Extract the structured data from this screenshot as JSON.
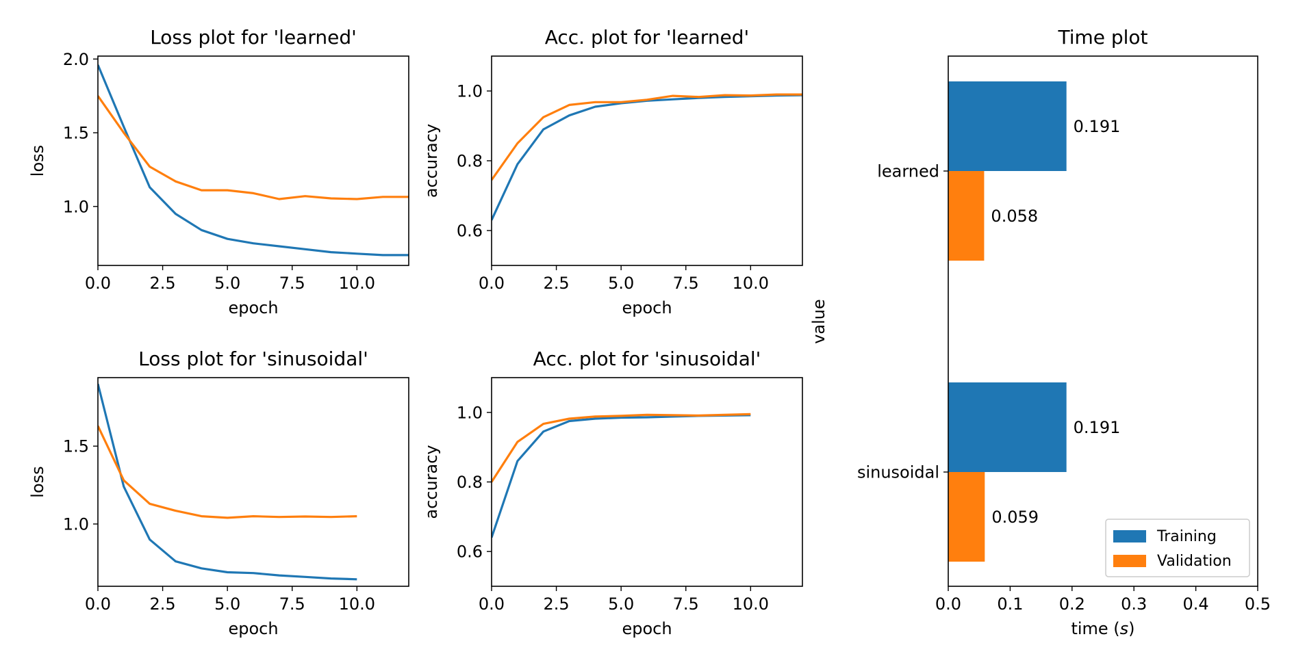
{
  "colors": {
    "training": "#1f77b4",
    "validation": "#ff7f0e"
  },
  "chart_data": [
    {
      "type": "line",
      "title": "Loss plot for 'learned'",
      "xlabel": "epoch",
      "ylabel": "loss",
      "xlim": [
        0,
        12
      ],
      "ylim": [
        0.6,
        2.02
      ],
      "xticks": [
        0,
        2.5,
        5,
        7.5,
        10
      ],
      "xtick_labels": [
        "0.0",
        "2.5",
        "5.0",
        "7.5",
        "10.0"
      ],
      "yticks": [
        1.0,
        1.5,
        2.0
      ],
      "ytick_labels": [
        "1.0",
        "1.5",
        "2.0"
      ],
      "series": [
        {
          "color": "#1f77b4",
          "x": [
            0,
            1,
            2,
            3,
            4,
            5,
            6,
            7,
            8,
            9,
            10,
            11,
            12
          ],
          "y": [
            1.96,
            1.54,
            1.13,
            0.95,
            0.84,
            0.78,
            0.75,
            0.73,
            0.71,
            0.69,
            0.68,
            0.67,
            0.67
          ]
        },
        {
          "color": "#ff7f0e",
          "x": [
            0,
            1,
            2,
            3,
            4,
            5,
            6,
            7,
            8,
            9,
            10,
            11,
            12
          ],
          "y": [
            1.75,
            1.5,
            1.27,
            1.17,
            1.11,
            1.11,
            1.09,
            1.05,
            1.07,
            1.055,
            1.05,
            1.065,
            1.065
          ]
        }
      ]
    },
    {
      "type": "line",
      "title": "Acc. plot for 'learned'",
      "xlabel": "epoch",
      "ylabel": "accuracy",
      "xlim": [
        0,
        12
      ],
      "ylim": [
        0.5,
        1.1
      ],
      "xticks": [
        0,
        2.5,
        5,
        7.5,
        10
      ],
      "xtick_labels": [
        "0.0",
        "2.5",
        "5.0",
        "7.5",
        "10.0"
      ],
      "yticks": [
        0.6,
        0.8,
        1.0
      ],
      "ytick_labels": [
        "0.6",
        "0.8",
        "1.0"
      ],
      "series": [
        {
          "color": "#1f77b4",
          "x": [
            0,
            1,
            2,
            3,
            4,
            5,
            6,
            7,
            8,
            9,
            10,
            11,
            12
          ],
          "y": [
            0.63,
            0.79,
            0.89,
            0.93,
            0.955,
            0.965,
            0.972,
            0.976,
            0.98,
            0.983,
            0.985,
            0.987,
            0.988
          ]
        },
        {
          "color": "#ff7f0e",
          "x": [
            0,
            1,
            2,
            3,
            4,
            5,
            6,
            7,
            8,
            9,
            10,
            11,
            12
          ],
          "y": [
            0.745,
            0.85,
            0.925,
            0.96,
            0.968,
            0.968,
            0.975,
            0.986,
            0.983,
            0.988,
            0.987,
            0.99,
            0.99
          ]
        }
      ]
    },
    {
      "type": "line",
      "title": "Loss plot for 'sinusoidal'",
      "xlabel": "epoch",
      "ylabel": "loss",
      "xlim": [
        0,
        12
      ],
      "ylim": [
        0.6,
        1.94
      ],
      "xticks": [
        0,
        2.5,
        5,
        7.5,
        10
      ],
      "xtick_labels": [
        "0.0",
        "2.5",
        "5.0",
        "7.5",
        "10.0"
      ],
      "yticks": [
        1.0,
        1.5
      ],
      "ytick_labels": [
        "1.0",
        "1.5"
      ],
      "series": [
        {
          "color": "#1f77b4",
          "x": [
            0,
            1,
            2,
            3,
            4,
            5,
            6,
            7,
            8,
            9,
            10
          ],
          "y": [
            1.9,
            1.24,
            0.9,
            0.76,
            0.715,
            0.69,
            0.685,
            0.67,
            0.66,
            0.65,
            0.645
          ]
        },
        {
          "color": "#ff7f0e",
          "x": [
            0,
            1,
            2,
            3,
            4,
            5,
            6,
            7,
            8,
            9,
            10
          ],
          "y": [
            1.63,
            1.28,
            1.13,
            1.085,
            1.05,
            1.04,
            1.05,
            1.045,
            1.048,
            1.045,
            1.05
          ]
        }
      ]
    },
    {
      "type": "line",
      "title": "Acc. plot for 'sinusoidal'",
      "xlabel": "epoch",
      "ylabel": "accuracy",
      "xlim": [
        0,
        12
      ],
      "ylim": [
        0.5,
        1.1
      ],
      "xticks": [
        0,
        2.5,
        5,
        7.5,
        10
      ],
      "xtick_labels": [
        "0.0",
        "2.5",
        "5.0",
        "7.5",
        "10.0"
      ],
      "yticks": [
        0.6,
        0.8,
        1.0
      ],
      "ytick_labels": [
        "0.6",
        "0.8",
        "1.0"
      ],
      "series": [
        {
          "color": "#1f77b4",
          "x": [
            0,
            1,
            2,
            3,
            4,
            5,
            6,
            7,
            8,
            9,
            10
          ],
          "y": [
            0.64,
            0.86,
            0.945,
            0.975,
            0.982,
            0.985,
            0.986,
            0.988,
            0.99,
            0.991,
            0.992
          ]
        },
        {
          "color": "#ff7f0e",
          "x": [
            0,
            1,
            2,
            3,
            4,
            5,
            6,
            7,
            8,
            9,
            10
          ],
          "y": [
            0.8,
            0.915,
            0.967,
            0.982,
            0.988,
            0.99,
            0.993,
            0.992,
            0.991,
            0.993,
            0.995
          ]
        }
      ]
    },
    {
      "type": "bar",
      "orientation": "horizontal",
      "title": "Time plot",
      "xlabel_prefix": "time (",
      "xlabel_var": "s",
      "xlabel_suffix": ")",
      "ylabel": "value",
      "xlim": [
        0,
        0.5
      ],
      "xticks": [
        0,
        0.1,
        0.2,
        0.3,
        0.4,
        0.5
      ],
      "xtick_labels": [
        "0.0",
        "0.1",
        "0.2",
        "0.3",
        "0.4",
        "0.5"
      ],
      "categories": [
        "learned",
        "sinusoidal"
      ],
      "series": [
        {
          "name": "Training",
          "color": "#1f77b4",
          "values": [
            0.191,
            0.191
          ],
          "labels": [
            "0.191",
            "0.191"
          ]
        },
        {
          "name": "Validation",
          "color": "#ff7f0e",
          "values": [
            0.058,
            0.059
          ],
          "labels": [
            "0.058",
            "0.059"
          ]
        }
      ],
      "legend": "lower-right"
    }
  ]
}
